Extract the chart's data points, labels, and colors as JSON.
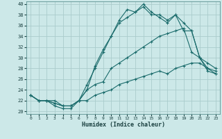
{
  "xlabel": "Humidex (Indice chaleur)",
  "xlim": [
    -0.5,
    23.5
  ],
  "ylim": [
    19.5,
    40.5
  ],
  "xticks": [
    0,
    1,
    2,
    3,
    4,
    5,
    6,
    7,
    8,
    9,
    10,
    11,
    12,
    13,
    14,
    15,
    16,
    17,
    18,
    19,
    20,
    21,
    22,
    23
  ],
  "yticks": [
    20,
    22,
    24,
    26,
    28,
    30,
    32,
    34,
    36,
    38,
    40
  ],
  "bg_color": "#cce8e8",
  "grid_color": "#aacccc",
  "line_color": "#1a6b6b",
  "lines": [
    {
      "x": [
        0,
        1,
        2,
        3,
        4,
        5,
        6,
        7,
        8,
        9,
        10,
        11,
        12,
        13,
        14,
        15,
        16,
        17,
        18,
        19,
        20,
        21,
        22,
        23
      ],
      "y": [
        23,
        22,
        22,
        21,
        20.5,
        20.5,
        22,
        25,
        28,
        31,
        34,
        37,
        39,
        38.5,
        39.5,
        38,
        38,
        37,
        38,
        35,
        35,
        30,
        28,
        27
      ]
    },
    {
      "x": [
        0,
        1,
        2,
        3,
        4,
        5,
        6,
        7,
        8,
        9,
        10,
        11,
        12,
        13,
        14,
        15,
        16,
        17,
        18,
        19,
        20,
        21,
        22,
        23
      ],
      "y": [
        23,
        22,
        22,
        21.5,
        21,
        21,
        22,
        24,
        28.5,
        31.5,
        34,
        36.5,
        37.5,
        38.5,
        40,
        38.5,
        37.5,
        36.5,
        38,
        36.5,
        35,
        30,
        27.5,
        27
      ]
    },
    {
      "x": [
        0,
        1,
        2,
        3,
        4,
        5,
        6,
        7,
        8,
        9,
        10,
        11,
        12,
        13,
        14,
        15,
        16,
        17,
        18,
        19,
        20,
        21,
        22,
        23
      ],
      "y": [
        23,
        22,
        22,
        21.5,
        21,
        21,
        22,
        24,
        25,
        25.5,
        28,
        29,
        30,
        31,
        32,
        33,
        34,
        34.5,
        35,
        35.5,
        31,
        30,
        29,
        28
      ]
    },
    {
      "x": [
        0,
        1,
        2,
        3,
        4,
        5,
        6,
        7,
        8,
        9,
        10,
        11,
        12,
        13,
        14,
        15,
        16,
        17,
        18,
        19,
        20,
        21,
        22,
        23
      ],
      "y": [
        23,
        22,
        22,
        22,
        21,
        21,
        22,
        22,
        23,
        23.5,
        24,
        25,
        25.5,
        26,
        26.5,
        27,
        27.5,
        27,
        28,
        28.5,
        29,
        29,
        28,
        27.5
      ]
    }
  ],
  "figsize": [
    3.2,
    2.0
  ],
  "dpi": 100
}
